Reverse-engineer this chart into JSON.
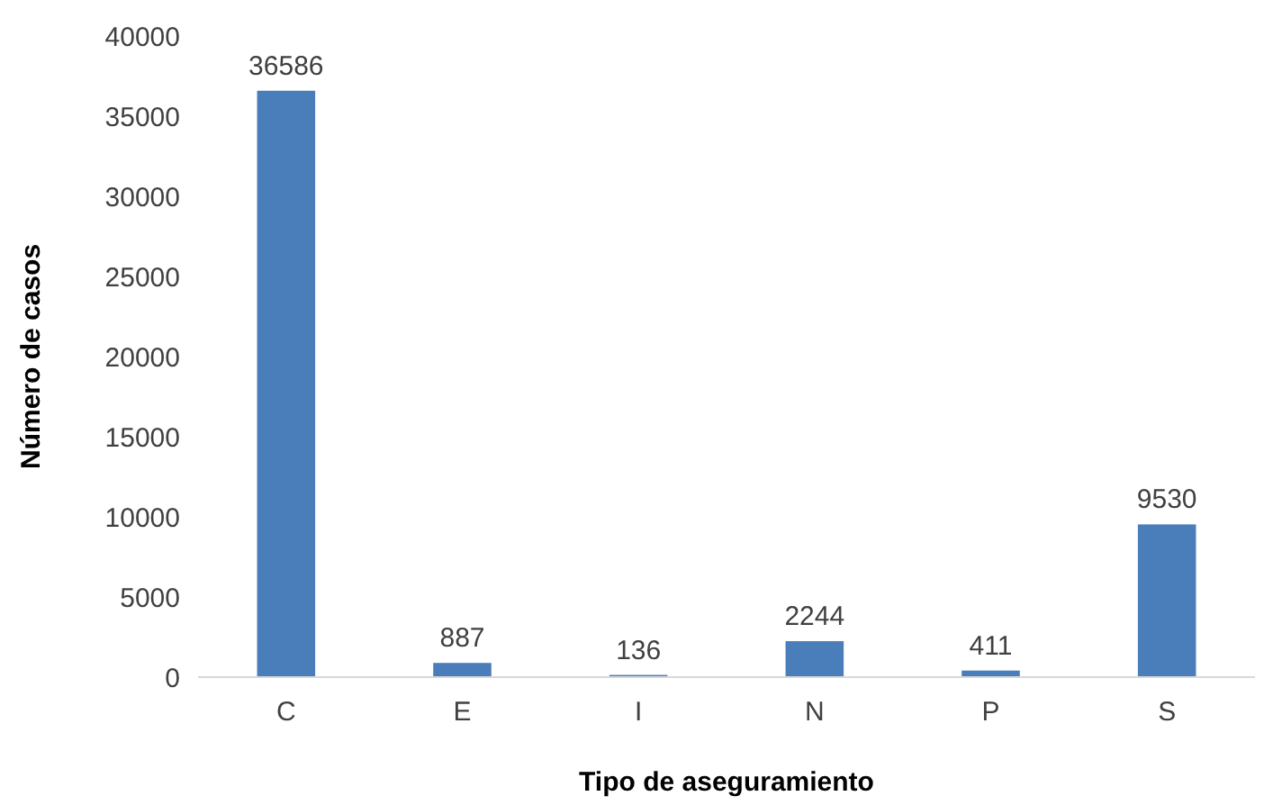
{
  "chart_data": {
    "type": "bar",
    "xlabel": "Tipo de aseguramiento",
    "ylabel": "Número de casos",
    "categories": [
      "C",
      "E",
      "I",
      "N",
      "P",
      "S"
    ],
    "values": [
      36586,
      887,
      136,
      2244,
      411,
      9530
    ],
    "color": "#4a7ebb",
    "data_labels": true,
    "grid": false,
    "ylim": [
      0,
      40000
    ],
    "yticks": [
      0,
      5000,
      10000,
      15000,
      20000,
      25000,
      30000,
      35000,
      40000
    ]
  }
}
